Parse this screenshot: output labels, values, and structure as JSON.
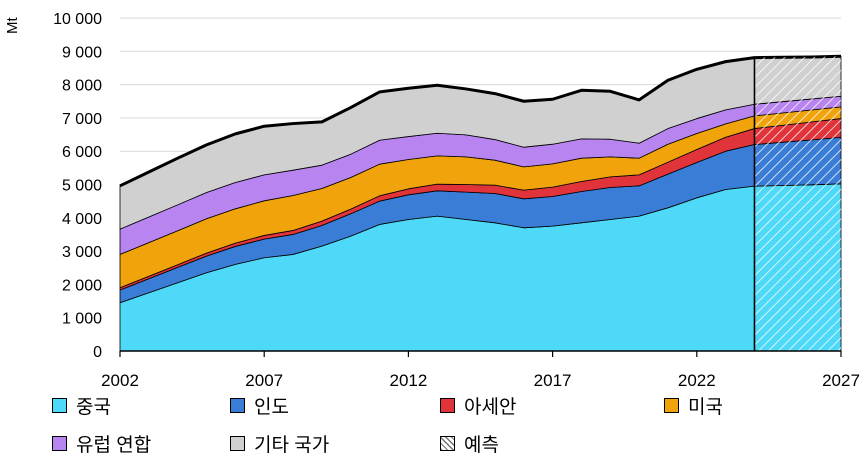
{
  "chart_data": {
    "type": "area",
    "title": "",
    "ylabel": "Mt",
    "xlabel": "",
    "ylim": [
      0,
      10000
    ],
    "yticks": [
      0,
      1000,
      2000,
      3000,
      4000,
      5000,
      6000,
      7000,
      8000,
      9000,
      10000
    ],
    "ytick_labels": [
      "0",
      "1 000",
      "2 000",
      "3 000",
      "4 000",
      "5 000",
      "6 000",
      "7 000",
      "8 000",
      "9 000",
      "10 000"
    ],
    "xlim": [
      2002,
      2027
    ],
    "xticks": [
      2002,
      2007,
      2012,
      2017,
      2022,
      2027
    ],
    "xtick_labels": [
      "2002",
      "2007",
      "2012",
      "2017",
      "2022",
      "2027"
    ],
    "grid": true,
    "stacked": true,
    "forecast_start": 2024,
    "x": [
      2002,
      2003,
      2004,
      2005,
      2006,
      2007,
      2008,
      2009,
      2010,
      2011,
      2012,
      2013,
      2014,
      2015,
      2016,
      2017,
      2018,
      2019,
      2020,
      2021,
      2022,
      2023,
      2024,
      2025,
      2026,
      2027
    ],
    "series": [
      {
        "name": "중국",
        "color": "#4DD9F7",
        "values": [
          1450,
          1750,
          2050,
          2350,
          2600,
          2800,
          2900,
          3150,
          3450,
          3800,
          3950,
          4050,
          3950,
          3850,
          3700,
          3750,
          3850,
          3950,
          4050,
          4300,
          4600,
          4850,
          4950,
          4970,
          4990,
          5020
        ]
      },
      {
        "name": "인도",
        "color": "#3A7DD6",
        "values": [
          380,
          420,
          460,
          500,
          540,
          560,
          600,
          620,
          670,
          700,
          740,
          760,
          820,
          880,
          870,
          890,
          940,
          960,
          910,
          1010,
          1060,
          1150,
          1250,
          1300,
          1350,
          1400
        ]
      },
      {
        "name": "아세안",
        "color": "#E0333A",
        "values": [
          70,
          75,
          80,
          90,
          100,
          110,
          120,
          130,
          140,
          160,
          180,
          200,
          230,
          250,
          260,
          280,
          300,
          320,
          330,
          360,
          390,
          420,
          480,
          510,
          540,
          560
        ]
      },
      {
        "name": "미국",
        "color": "#F0A30A",
        "values": [
          1000,
          1010,
          1020,
          1030,
          1030,
          1040,
          1050,
          980,
          950,
          950,
          880,
          850,
          830,
          750,
          700,
          700,
          700,
          600,
          500,
          540,
          480,
          400,
          380,
          370,
          360,
          350
        ]
      },
      {
        "name": "유럽 연합",
        "color": "#B784F0",
        "values": [
          760,
          770,
          780,
          790,
          790,
          780,
          760,
          700,
          700,
          720,
          690,
          680,
          660,
          620,
          590,
          590,
          580,
          530,
          450,
          470,
          450,
          420,
          350,
          340,
          330,
          320
        ]
      },
      {
        "name": "기타 국가",
        "color": "#D0D0D0",
        "values": [
          1300,
          1350,
          1400,
          1430,
          1460,
          1460,
          1400,
          1300,
          1400,
          1450,
          1450,
          1440,
          1380,
          1380,
          1380,
          1350,
          1460,
          1440,
          1300,
          1450,
          1480,
          1450,
          1400,
          1330,
          1260,
          1200
        ]
      }
    ],
    "legend": [
      {
        "label": "중국",
        "kind": "series",
        "color": "#4DD9F7"
      },
      {
        "label": "인도",
        "kind": "series",
        "color": "#3A7DD6"
      },
      {
        "label": "아세안",
        "kind": "series",
        "color": "#E0333A"
      },
      {
        "label": "미국",
        "kind": "series",
        "color": "#F0A30A"
      },
      {
        "label": "유럽 연합",
        "kind": "series",
        "color": "#B784F0"
      },
      {
        "label": "기타 국가",
        "kind": "series",
        "color": "#D0D0D0"
      },
      {
        "label": "예측",
        "kind": "hatch",
        "color": "#FFFFFF"
      }
    ]
  }
}
